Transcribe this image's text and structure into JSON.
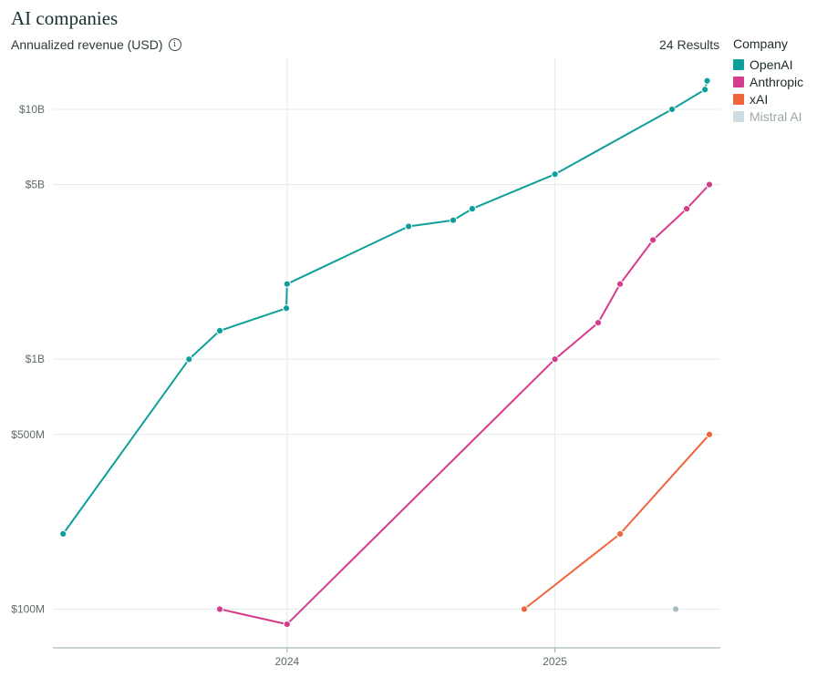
{
  "header": {
    "title": "AI companies",
    "subtitle": "Annualized revenue (USD)",
    "results": "24 Results"
  },
  "legend": {
    "title": "Company",
    "items": [
      {
        "label": "OpenAI",
        "color": "#0f9f9a",
        "muted": false
      },
      {
        "label": "Anthropic",
        "color": "#d63c8c",
        "muted": false
      },
      {
        "label": "xAI",
        "color": "#f0643c",
        "muted": false
      },
      {
        "label": "Mistral AI",
        "color": "#cfdde2",
        "muted": true
      }
    ]
  },
  "chart_data": {
    "type": "line",
    "title": "AI companies",
    "ylabel": "Annualized revenue (USD)",
    "xlabel": "",
    "y_scale": "log",
    "ylim": [
      70000000,
      16000000000
    ],
    "xlim": [
      "2023-02-15",
      "2025-08-15"
    ],
    "x_ticks": [
      {
        "label": "2024",
        "date": "2024-01-01"
      },
      {
        "label": "2025",
        "date": "2025-01-01"
      }
    ],
    "y_ticks": [
      {
        "label": "$100M",
        "value": 100000000
      },
      {
        "label": "$500M",
        "value": 500000000
      },
      {
        "label": "$1B",
        "value": 1000000000
      },
      {
        "label": "$5B",
        "value": 5000000000
      },
      {
        "label": "$10B",
        "value": 10000000000
      }
    ],
    "grid": true,
    "legend_position": "right",
    "series": [
      {
        "name": "OpenAI",
        "color": "#0f9f9a",
        "points": [
          {
            "x": "2023-03-01",
            "y": 200000000
          },
          {
            "x": "2023-08-20",
            "y": 1000000000
          },
          {
            "x": "2023-10-01",
            "y": 1300000000
          },
          {
            "x": "2023-12-31",
            "y": 1600000000
          },
          {
            "x": "2024-01-01",
            "y": 2000000000
          },
          {
            "x": "2024-06-15",
            "y": 3400000000
          },
          {
            "x": "2024-08-15",
            "y": 3600000000
          },
          {
            "x": "2024-09-10",
            "y": 4000000000
          },
          {
            "x": "2025-01-01",
            "y": 5500000000
          },
          {
            "x": "2025-06-10",
            "y": 10000000000
          },
          {
            "x": "2025-07-25",
            "y": 12000000000
          },
          {
            "x": "2025-07-28",
            "y": 13000000000
          }
        ]
      },
      {
        "name": "Anthropic",
        "color": "#d63c8c",
        "points": [
          {
            "x": "2023-10-01",
            "y": 100000000
          },
          {
            "x": "2024-01-01",
            "y": 87000000
          },
          {
            "x": "2025-01-01",
            "y": 1000000000
          },
          {
            "x": "2025-03-01",
            "y": 1400000000
          },
          {
            "x": "2025-03-31",
            "y": 2000000000
          },
          {
            "x": "2025-05-15",
            "y": 3000000000
          },
          {
            "x": "2025-06-30",
            "y": 4000000000
          },
          {
            "x": "2025-07-31",
            "y": 5000000000
          }
        ]
      },
      {
        "name": "xAI",
        "color": "#f0643c",
        "points": [
          {
            "x": "2024-11-20",
            "y": 100000000
          },
          {
            "x": "2025-03-31",
            "y": 200000000
          },
          {
            "x": "2025-07-31",
            "y": 500000000
          }
        ]
      },
      {
        "name": "Mistral AI",
        "color": "#a9bcc3",
        "points": [
          {
            "x": "2025-06-15",
            "y": 100000000
          }
        ]
      }
    ]
  }
}
